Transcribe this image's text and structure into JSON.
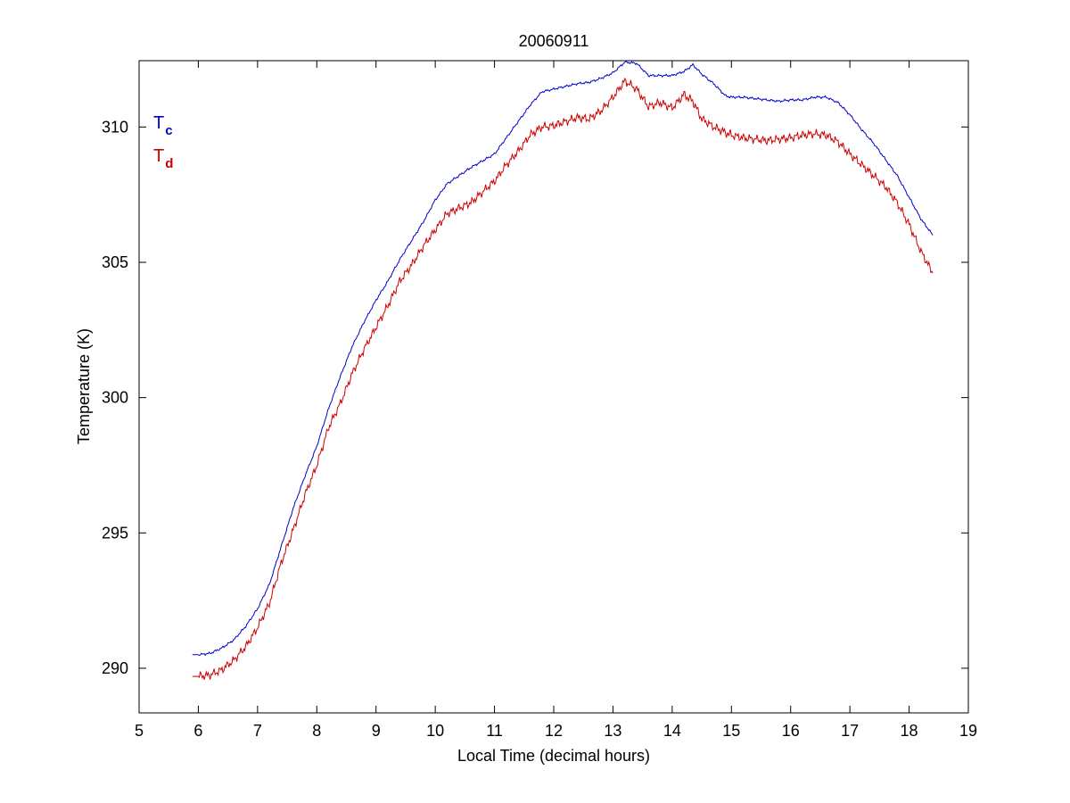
{
  "chart_data": {
    "type": "line",
    "title": "20060911",
    "xlabel": "Local Time (decimal hours)",
    "ylabel": "Temperature (K)",
    "xlim": [
      5,
      19
    ],
    "ylim": [
      288.35,
      312.45
    ],
    "xticks": [
      5,
      6,
      7,
      8,
      9,
      10,
      11,
      12,
      13,
      14,
      15,
      16,
      17,
      18,
      19
    ],
    "yticks": [
      290,
      295,
      300,
      305,
      310
    ],
    "grid": false,
    "legend_position": "top-left",
    "series": [
      {
        "name": "Tc",
        "name_main": "T",
        "name_sub": "c",
        "color": "#0000cc",
        "x": [
          5.9,
          6.0,
          6.2,
          6.4,
          6.6,
          6.8,
          7.0,
          7.2,
          7.4,
          7.6,
          7.8,
          8.0,
          8.2,
          8.4,
          8.6,
          8.8,
          9.0,
          9.2,
          9.4,
          9.6,
          9.8,
          10.0,
          10.2,
          10.4,
          10.6,
          10.8,
          11.0,
          11.2,
          11.4,
          11.6,
          11.8,
          12.0,
          12.2,
          12.4,
          12.6,
          12.8,
          13.0,
          13.2,
          13.4,
          13.6,
          13.8,
          14.0,
          14.2,
          14.35,
          14.5,
          14.7,
          14.9,
          15.0,
          15.2,
          15.4,
          15.6,
          15.8,
          16.0,
          16.2,
          16.4,
          16.6,
          16.8,
          17.0,
          17.2,
          17.4,
          17.6,
          17.8,
          18.0,
          18.2,
          18.4
        ],
        "y": [
          290.5,
          290.5,
          290.55,
          290.75,
          291.05,
          291.55,
          292.2,
          293.1,
          294.5,
          295.9,
          297.1,
          298.2,
          299.6,
          300.8,
          301.9,
          302.8,
          303.6,
          304.3,
          305.1,
          305.8,
          306.5,
          307.3,
          307.9,
          308.2,
          308.5,
          308.75,
          309.0,
          309.6,
          310.2,
          310.8,
          311.3,
          311.4,
          311.5,
          311.6,
          311.65,
          311.8,
          312.0,
          312.4,
          312.35,
          311.9,
          311.9,
          311.9,
          312.05,
          312.3,
          311.95,
          311.6,
          311.15,
          311.1,
          311.1,
          311.05,
          311.0,
          310.95,
          311.0,
          311.0,
          311.1,
          311.1,
          310.9,
          310.45,
          309.9,
          309.4,
          308.8,
          308.2,
          307.4,
          306.6,
          306.0
        ]
      },
      {
        "name": "Td",
        "name_main": "T",
        "name_sub": "d",
        "color": "#cc0000",
        "x": [
          5.9,
          6.0,
          6.2,
          6.4,
          6.6,
          6.8,
          7.0,
          7.2,
          7.4,
          7.6,
          7.8,
          8.0,
          8.2,
          8.4,
          8.6,
          8.8,
          9.0,
          9.2,
          9.4,
          9.6,
          9.8,
          10.0,
          10.2,
          10.4,
          10.6,
          10.8,
          11.0,
          11.2,
          11.4,
          11.6,
          11.8,
          12.0,
          12.2,
          12.4,
          12.6,
          12.8,
          13.0,
          13.2,
          13.4,
          13.6,
          13.8,
          14.0,
          14.2,
          14.35,
          14.5,
          14.7,
          14.9,
          15.0,
          15.2,
          15.4,
          15.6,
          15.8,
          16.0,
          16.2,
          16.4,
          16.6,
          16.8,
          17.0,
          17.2,
          17.4,
          17.6,
          17.8,
          18.0,
          18.2,
          18.4
        ],
        "y": [
          289.7,
          289.7,
          289.75,
          289.95,
          290.3,
          290.8,
          291.5,
          292.4,
          293.9,
          295.1,
          296.4,
          297.5,
          298.9,
          299.8,
          300.9,
          301.8,
          302.6,
          303.4,
          304.3,
          304.9,
          305.6,
          306.2,
          306.8,
          307.0,
          307.2,
          307.6,
          308.0,
          308.6,
          309.1,
          309.7,
          310.0,
          310.05,
          310.2,
          310.35,
          310.3,
          310.6,
          311.1,
          311.7,
          311.4,
          310.75,
          310.9,
          310.7,
          311.2,
          310.95,
          310.3,
          310.0,
          309.8,
          309.7,
          309.6,
          309.55,
          309.5,
          309.55,
          309.6,
          309.7,
          309.75,
          309.7,
          309.45,
          309.0,
          308.6,
          308.2,
          307.8,
          307.2,
          306.4,
          305.4,
          304.6
        ]
      }
    ]
  }
}
